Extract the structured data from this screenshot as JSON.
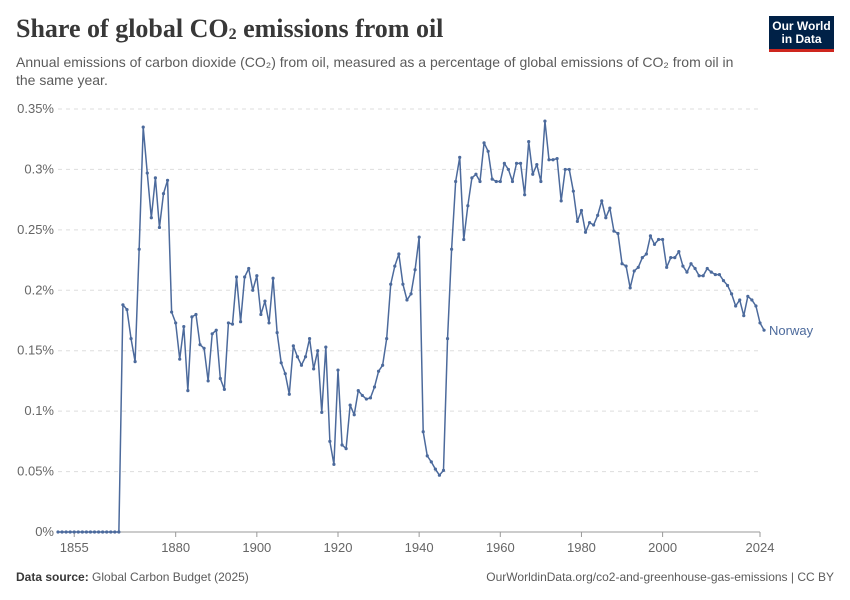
{
  "header": {
    "title_main": "Share of global CO",
    "title_sub": "2",
    "title_end": " emissions from oil",
    "subtitle": "Annual emissions of carbon dioxide (CO₂) from oil, measured as a percentage of global emissions of CO₂ from oil in the same year."
  },
  "logo": {
    "line1": "Our World",
    "line2": "in Data"
  },
  "footer": {
    "source_label": "Data source:",
    "source_text": " Global Carbon Budget (2025)",
    "url_text": "OurWorldinData.org/co2-and-greenhouse-gas-emissions | CC BY"
  },
  "chart_data": {
    "type": "line",
    "title": "Share of global CO₂ emissions from oil",
    "xlabel": "",
    "ylabel": "",
    "xlim": [
      1851,
      2024
    ],
    "ylim": [
      0,
      0.35
    ],
    "y_ticks": [
      0,
      0.05,
      0.1,
      0.15,
      0.2,
      0.25,
      0.3,
      0.35
    ],
    "y_tick_labels": [
      "0%",
      "0.05%",
      "0.1%",
      "0.15%",
      "0.2%",
      "0.25%",
      "0.3%",
      "0.35%"
    ],
    "x_ticks": [
      1855,
      1880,
      1900,
      1920,
      1940,
      1960,
      1980,
      2000,
      2024
    ],
    "x_tick_labels": [
      "1855",
      "1880",
      "1900",
      "1920",
      "1940",
      "1960",
      "1980",
      "2000",
      "2024"
    ],
    "grid": "horizontal dashed",
    "colors": {
      "series": "#4c6a9c",
      "grid": "#dddddd",
      "axis": "#999999"
    },
    "series": [
      {
        "name": "Norway",
        "start_year": 1851,
        "values": [
          0,
          0,
          0,
          0,
          0,
          0,
          0,
          0,
          0,
          0,
          0,
          0,
          0,
          0,
          0,
          0,
          0.188,
          0.184,
          0.16,
          0.141,
          0.234,
          0.335,
          0.297,
          0.26,
          0.293,
          0.252,
          0.28,
          0.291,
          0.182,
          0.173,
          0.143,
          0.17,
          0.117,
          0.178,
          0.18,
          0.155,
          0.152,
          0.125,
          0.164,
          0.167,
          0.127,
          0.118,
          0.173,
          0.172,
          0.211,
          0.174,
          0.211,
          0.218,
          0.2,
          0.212,
          0.18,
          0.191,
          0.173,
          0.21,
          0.165,
          0.14,
          0.131,
          0.114,
          0.154,
          0.145,
          0.138,
          0.145,
          0.16,
          0.135,
          0.15,
          0.099,
          0.153,
          0.075,
          0.056,
          0.134,
          0.072,
          0.069,
          0.105,
          0.097,
          0.117,
          0.113,
          0.11,
          0.111,
          0.12,
          0.133,
          0.138,
          0.16,
          0.205,
          0.22,
          0.23,
          0.205,
          0.192,
          0.197,
          0.217,
          0.244,
          0.083,
          0.063,
          0.058,
          0.052,
          0.047,
          0.051,
          0.16,
          0.234,
          0.29,
          0.31,
          0.242,
          0.27,
          0.293,
          0.296,
          0.29,
          0.322,
          0.315,
          0.292,
          0.29,
          0.29,
          0.305,
          0.3,
          0.29,
          0.305,
          0.305,
          0.279,
          0.323,
          0.296,
          0.304,
          0.29,
          0.34,
          0.308,
          0.308,
          0.309,
          0.274,
          0.3,
          0.3,
          0.282,
          0.257,
          0.266,
          0.248,
          0.256,
          0.254,
          0.262,
          0.274,
          0.26,
          0.268,
          0.249,
          0.247,
          0.222,
          0.22,
          0.202,
          0.216,
          0.219,
          0.227,
          0.23,
          0.245,
          0.238,
          0.242,
          0.242,
          0.219,
          0.227,
          0.227,
          0.232,
          0.22,
          0.215,
          0.222,
          0.218,
          0.212,
          0.212,
          0.218,
          0.215,
          0.213,
          0.213,
          0.208,
          0.204,
          0.197,
          0.187,
          0.192,
          0.179,
          0.195,
          0.192,
          0.187,
          0.173,
          0.167
        ]
      }
    ]
  }
}
